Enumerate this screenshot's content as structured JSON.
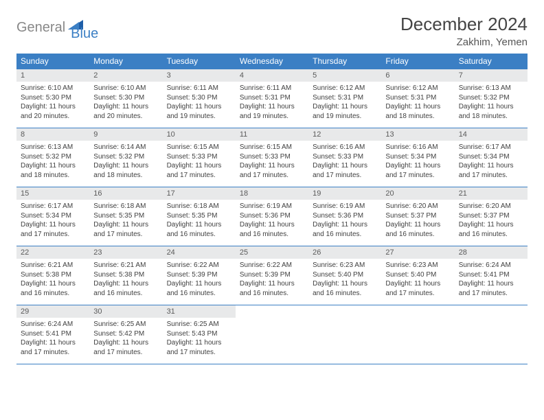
{
  "brand": {
    "part1": "General",
    "part2": "Blue"
  },
  "title": "December 2024",
  "location": "Zakhim, Yemen",
  "colors": {
    "header_bg": "#3b7fc4",
    "header_fg": "#ffffff",
    "daynum_bg": "#e8e9ea",
    "border": "#3b7fc4",
    "background": "#ffffff",
    "text": "#404040"
  },
  "typography": {
    "title_fontsize": 26,
    "location_fontsize": 15,
    "header_fontsize": 12,
    "daynum_fontsize": 11,
    "body_fontsize": 10
  },
  "weekdays": [
    "Sunday",
    "Monday",
    "Tuesday",
    "Wednesday",
    "Thursday",
    "Friday",
    "Saturday"
  ],
  "weeks": [
    [
      {
        "n": "1",
        "sr": "Sunrise: 6:10 AM",
        "ss": "Sunset: 5:30 PM",
        "d1": "Daylight: 11 hours",
        "d2": "and 20 minutes."
      },
      {
        "n": "2",
        "sr": "Sunrise: 6:10 AM",
        "ss": "Sunset: 5:30 PM",
        "d1": "Daylight: 11 hours",
        "d2": "and 20 minutes."
      },
      {
        "n": "3",
        "sr": "Sunrise: 6:11 AM",
        "ss": "Sunset: 5:30 PM",
        "d1": "Daylight: 11 hours",
        "d2": "and 19 minutes."
      },
      {
        "n": "4",
        "sr": "Sunrise: 6:11 AM",
        "ss": "Sunset: 5:31 PM",
        "d1": "Daylight: 11 hours",
        "d2": "and 19 minutes."
      },
      {
        "n": "5",
        "sr": "Sunrise: 6:12 AM",
        "ss": "Sunset: 5:31 PM",
        "d1": "Daylight: 11 hours",
        "d2": "and 19 minutes."
      },
      {
        "n": "6",
        "sr": "Sunrise: 6:12 AM",
        "ss": "Sunset: 5:31 PM",
        "d1": "Daylight: 11 hours",
        "d2": "and 18 minutes."
      },
      {
        "n": "7",
        "sr": "Sunrise: 6:13 AM",
        "ss": "Sunset: 5:32 PM",
        "d1": "Daylight: 11 hours",
        "d2": "and 18 minutes."
      }
    ],
    [
      {
        "n": "8",
        "sr": "Sunrise: 6:13 AM",
        "ss": "Sunset: 5:32 PM",
        "d1": "Daylight: 11 hours",
        "d2": "and 18 minutes."
      },
      {
        "n": "9",
        "sr": "Sunrise: 6:14 AM",
        "ss": "Sunset: 5:32 PM",
        "d1": "Daylight: 11 hours",
        "d2": "and 18 minutes."
      },
      {
        "n": "10",
        "sr": "Sunrise: 6:15 AM",
        "ss": "Sunset: 5:33 PM",
        "d1": "Daylight: 11 hours",
        "d2": "and 17 minutes."
      },
      {
        "n": "11",
        "sr": "Sunrise: 6:15 AM",
        "ss": "Sunset: 5:33 PM",
        "d1": "Daylight: 11 hours",
        "d2": "and 17 minutes."
      },
      {
        "n": "12",
        "sr": "Sunrise: 6:16 AM",
        "ss": "Sunset: 5:33 PM",
        "d1": "Daylight: 11 hours",
        "d2": "and 17 minutes."
      },
      {
        "n": "13",
        "sr": "Sunrise: 6:16 AM",
        "ss": "Sunset: 5:34 PM",
        "d1": "Daylight: 11 hours",
        "d2": "and 17 minutes."
      },
      {
        "n": "14",
        "sr": "Sunrise: 6:17 AM",
        "ss": "Sunset: 5:34 PM",
        "d1": "Daylight: 11 hours",
        "d2": "and 17 minutes."
      }
    ],
    [
      {
        "n": "15",
        "sr": "Sunrise: 6:17 AM",
        "ss": "Sunset: 5:34 PM",
        "d1": "Daylight: 11 hours",
        "d2": "and 17 minutes."
      },
      {
        "n": "16",
        "sr": "Sunrise: 6:18 AM",
        "ss": "Sunset: 5:35 PM",
        "d1": "Daylight: 11 hours",
        "d2": "and 17 minutes."
      },
      {
        "n": "17",
        "sr": "Sunrise: 6:18 AM",
        "ss": "Sunset: 5:35 PM",
        "d1": "Daylight: 11 hours",
        "d2": "and 16 minutes."
      },
      {
        "n": "18",
        "sr": "Sunrise: 6:19 AM",
        "ss": "Sunset: 5:36 PM",
        "d1": "Daylight: 11 hours",
        "d2": "and 16 minutes."
      },
      {
        "n": "19",
        "sr": "Sunrise: 6:19 AM",
        "ss": "Sunset: 5:36 PM",
        "d1": "Daylight: 11 hours",
        "d2": "and 16 minutes."
      },
      {
        "n": "20",
        "sr": "Sunrise: 6:20 AM",
        "ss": "Sunset: 5:37 PM",
        "d1": "Daylight: 11 hours",
        "d2": "and 16 minutes."
      },
      {
        "n": "21",
        "sr": "Sunrise: 6:20 AM",
        "ss": "Sunset: 5:37 PM",
        "d1": "Daylight: 11 hours",
        "d2": "and 16 minutes."
      }
    ],
    [
      {
        "n": "22",
        "sr": "Sunrise: 6:21 AM",
        "ss": "Sunset: 5:38 PM",
        "d1": "Daylight: 11 hours",
        "d2": "and 16 minutes."
      },
      {
        "n": "23",
        "sr": "Sunrise: 6:21 AM",
        "ss": "Sunset: 5:38 PM",
        "d1": "Daylight: 11 hours",
        "d2": "and 16 minutes."
      },
      {
        "n": "24",
        "sr": "Sunrise: 6:22 AM",
        "ss": "Sunset: 5:39 PM",
        "d1": "Daylight: 11 hours",
        "d2": "and 16 minutes."
      },
      {
        "n": "25",
        "sr": "Sunrise: 6:22 AM",
        "ss": "Sunset: 5:39 PM",
        "d1": "Daylight: 11 hours",
        "d2": "and 16 minutes."
      },
      {
        "n": "26",
        "sr": "Sunrise: 6:23 AM",
        "ss": "Sunset: 5:40 PM",
        "d1": "Daylight: 11 hours",
        "d2": "and 16 minutes."
      },
      {
        "n": "27",
        "sr": "Sunrise: 6:23 AM",
        "ss": "Sunset: 5:40 PM",
        "d1": "Daylight: 11 hours",
        "d2": "and 17 minutes."
      },
      {
        "n": "28",
        "sr": "Sunrise: 6:24 AM",
        "ss": "Sunset: 5:41 PM",
        "d1": "Daylight: 11 hours",
        "d2": "and 17 minutes."
      }
    ],
    [
      {
        "n": "29",
        "sr": "Sunrise: 6:24 AM",
        "ss": "Sunset: 5:41 PM",
        "d1": "Daylight: 11 hours",
        "d2": "and 17 minutes."
      },
      {
        "n": "30",
        "sr": "Sunrise: 6:25 AM",
        "ss": "Sunset: 5:42 PM",
        "d1": "Daylight: 11 hours",
        "d2": "and 17 minutes."
      },
      {
        "n": "31",
        "sr": "Sunrise: 6:25 AM",
        "ss": "Sunset: 5:43 PM",
        "d1": "Daylight: 11 hours",
        "d2": "and 17 minutes."
      },
      null,
      null,
      null,
      null
    ]
  ]
}
